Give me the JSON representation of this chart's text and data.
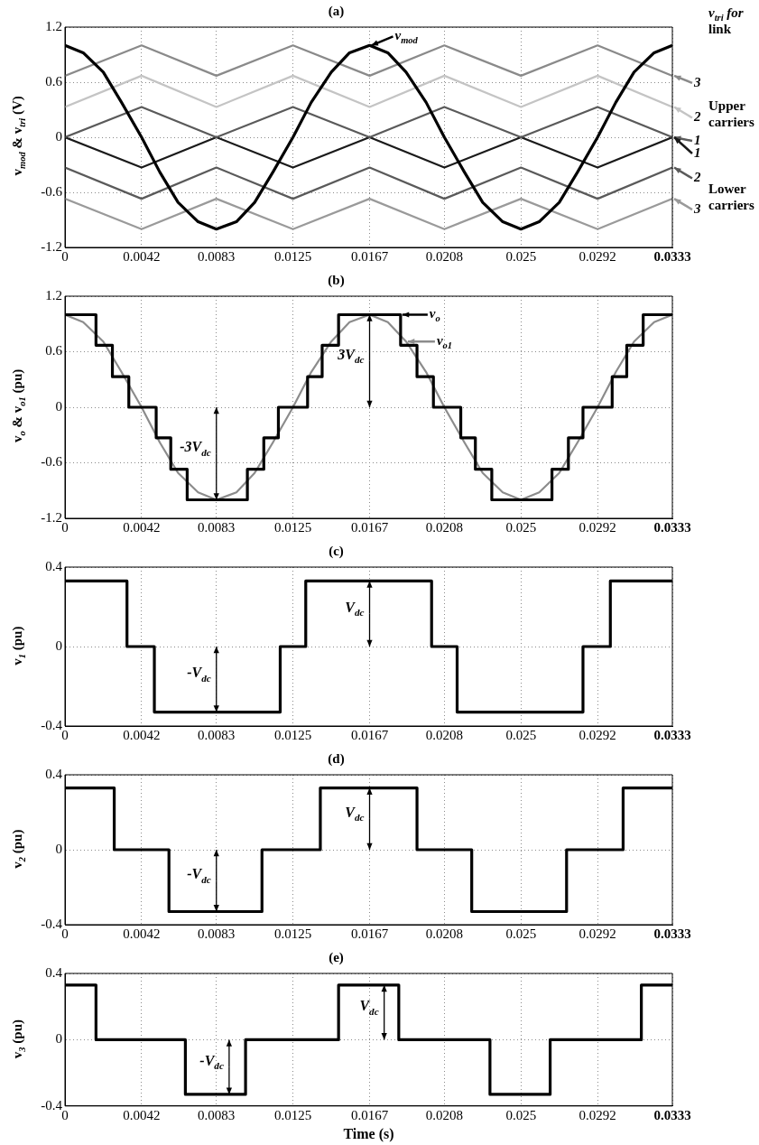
{
  "chart_data": [
    {
      "type": "line",
      "title": "(a)",
      "ylabel": "v$_{mod}$ & v$_{tri}$ (V)",
      "xlim": [
        0,
        0.0333
      ],
      "xticks": [
        0,
        0.0042,
        0.0083,
        0.0125,
        0.0167,
        0.0208,
        0.025,
        0.0292,
        0.0333
      ],
      "ylim": [
        -1.2,
        1.2
      ],
      "yticks": [
        -1.2,
        -0.6,
        0,
        0.6,
        1.2
      ],
      "grid": true,
      "annotations": [
        "v$_{tri}$ for link",
        "Upper carriers",
        "Lower carriers"
      ],
      "legend": "right",
      "series": [
        {
          "name": "v$_{mod}$",
          "color": "#000000",
          "x": [
            0,
            0.001,
            0.0021,
            0.0031,
            0.0042,
            0.0052,
            0.0062,
            0.0073,
            0.0083,
            0.0094,
            0.0104,
            0.0114,
            0.0125,
            0.0135,
            0.0146,
            0.0156,
            0.0167,
            0.0177,
            0.0187,
            0.0198,
            0.0208,
            0.0219,
            0.0229,
            0.024,
            0.025,
            0.026,
            0.0271,
            0.0281,
            0.0292,
            0.0302,
            0.0312,
            0.0323,
            0.0333
          ],
          "values": [
            1,
            0.92,
            0.71,
            0.38,
            0,
            -0.38,
            -0.71,
            -0.92,
            -1,
            -0.92,
            -0.71,
            -0.38,
            0,
            0.38,
            0.71,
            0.92,
            1,
            0.92,
            0.71,
            0.38,
            0,
            -0.38,
            -0.71,
            -0.92,
            -1,
            -0.92,
            -0.71,
            -0.38,
            0,
            0.38,
            0.71,
            0.92,
            1
          ]
        },
        {
          "name": "3",
          "color": "#8a8a8a",
          "x": [
            0,
            0.0042,
            0.0083,
            0.0125,
            0.0167,
            0.0208,
            0.025,
            0.0292,
            0.0333
          ],
          "values": [
            0.67,
            1,
            0.67,
            1,
            0.67,
            1,
            0.67,
            1,
            0.67
          ]
        },
        {
          "name": "2",
          "color": "#c4c4c4",
          "x": [
            0,
            0.0042,
            0.0083,
            0.0125,
            0.0167,
            0.0208,
            0.025,
            0.0292,
            0.0333
          ],
          "values": [
            0.33,
            0.67,
            0.33,
            0.67,
            0.33,
            0.67,
            0.33,
            0.67,
            0.33
          ]
        },
        {
          "name": "1",
          "color": "#5a5a5a",
          "x": [
            0,
            0.0042,
            0.0083,
            0.0125,
            0.0167,
            0.0208,
            0.025,
            0.0292,
            0.0333
          ],
          "values": [
            0,
            0.33,
            0,
            0.33,
            0,
            0.33,
            0,
            0.33,
            0
          ]
        },
        {
          "name": "1",
          "color": "#1a1a1a",
          "x": [
            0,
            0.0042,
            0.0083,
            0.0125,
            0.0167,
            0.0208,
            0.025,
            0.0292,
            0.0333
          ],
          "values": [
            0,
            -0.33,
            0,
            -0.33,
            0,
            -0.33,
            0,
            -0.33,
            0
          ]
        },
        {
          "name": "2",
          "color": "#5a5a5a",
          "x": [
            0,
            0.0042,
            0.0083,
            0.0125,
            0.0167,
            0.0208,
            0.025,
            0.0292,
            0.0333
          ],
          "values": [
            -0.33,
            -0.67,
            -0.33,
            -0.67,
            -0.33,
            -0.67,
            -0.33,
            -0.67,
            -0.33
          ]
        },
        {
          "name": "3",
          "color": "#9a9a9a",
          "x": [
            0,
            0.0042,
            0.0083,
            0.0125,
            0.0167,
            0.0208,
            0.025,
            0.0292,
            0.0333
          ],
          "values": [
            -0.67,
            -1,
            -0.67,
            -1,
            -0.67,
            -1,
            -0.67,
            -1,
            -0.67
          ]
        }
      ]
    },
    {
      "type": "line",
      "title": "(b)",
      "ylabel": "v$_{o}$ & v$_{o1}$ (pu)",
      "xlim": [
        0,
        0.0333
      ],
      "xticks": [
        0,
        0.0042,
        0.0083,
        0.0125,
        0.0167,
        0.0208,
        0.025,
        0.0292,
        0.0333
      ],
      "ylim": [
        -1.2,
        1.2
      ],
      "yticks": [
        -1.2,
        -0.6,
        0,
        0.6,
        1.2
      ],
      "grid": true,
      "annotations": [
        {
          "text": "3V$_{dc}$",
          "x": 0.0167,
          "y": 1
        },
        {
          "text": "-3V$_{dc}$",
          "x": 0.0083,
          "y": -1
        }
      ],
      "legend": "top right",
      "series": [
        {
          "name": "v$_{o}$",
          "type": "step",
          "color": "#000000",
          "x": [
            0,
            0.0017,
            0.0026,
            0.0035,
            0.005,
            0.0058,
            0.0067,
            0.01,
            0.0109,
            0.0117,
            0.0133,
            0.0141,
            0.015,
            0.0184,
            0.0193,
            0.0202,
            0.0217,
            0.0225,
            0.0234,
            0.0267,
            0.0276,
            0.0284,
            0.03,
            0.0308,
            0.0317,
            0.0333
          ],
          "values": [
            1,
            0.67,
            0.33,
            0,
            -0.33,
            -0.67,
            -1,
            -0.67,
            -0.33,
            0,
            0.33,
            0.67,
            1,
            0.67,
            0.33,
            0,
            -0.33,
            -0.67,
            -1,
            -0.67,
            -0.33,
            0,
            0.33,
            0.67,
            1,
            1
          ]
        },
        {
          "name": "v$_{o1}$",
          "color": "#8c8c8c",
          "x": [
            0,
            0.001,
            0.0021,
            0.0031,
            0.0042,
            0.0052,
            0.0062,
            0.0073,
            0.0083,
            0.0094,
            0.0104,
            0.0114,
            0.0125,
            0.0135,
            0.0146,
            0.0156,
            0.0167,
            0.0177,
            0.0187,
            0.0198,
            0.0208,
            0.0219,
            0.0229,
            0.024,
            0.025,
            0.026,
            0.0271,
            0.0281,
            0.0292,
            0.0302,
            0.0312,
            0.0323,
            0.0333
          ],
          "values": [
            1,
            0.92,
            0.71,
            0.38,
            0,
            -0.38,
            -0.71,
            -0.92,
            -1,
            -0.92,
            -0.71,
            -0.38,
            0,
            0.38,
            0.71,
            0.92,
            1,
            0.92,
            0.71,
            0.38,
            0,
            -0.38,
            -0.71,
            -0.92,
            -1,
            -0.92,
            -0.71,
            -0.38,
            0,
            0.38,
            0.71,
            0.92,
            1
          ]
        }
      ]
    },
    {
      "type": "step",
      "title": "(c)",
      "ylabel": "v$_{1}$ (pu)",
      "xlim": [
        0,
        0.0333
      ],
      "xticks": [
        0,
        0.0042,
        0.0083,
        0.0125,
        0.0167,
        0.0208,
        0.025,
        0.0292,
        0.0333
      ],
      "ylim": [
        -0.4,
        0.4
      ],
      "yticks": [
        -0.4,
        0,
        0.4
      ],
      "grid": true,
      "annotations": [
        {
          "text": "V$_{dc}$",
          "x": 0.0167,
          "y": 0.33
        },
        {
          "text": "-V$_{dc}$",
          "x": 0.0083,
          "y": -0.33
        }
      ],
      "series": [
        {
          "color": "#000000",
          "x": [
            0,
            0.0034,
            0.0049,
            0.0118,
            0.0132,
            0.0201,
            0.0215,
            0.0284,
            0.0299,
            0.0333
          ],
          "values": [
            0.33,
            0,
            -0.33,
            0,
            0.33,
            0,
            -0.33,
            0,
            0.33,
            0.33
          ]
        }
      ]
    },
    {
      "type": "step",
      "title": "(d)",
      "ylabel": "v$_{2}$ (pu)",
      "xlim": [
        0,
        0.0333
      ],
      "xticks": [
        0,
        0.0042,
        0.0083,
        0.0125,
        0.0167,
        0.0208,
        0.025,
        0.0292,
        0.0333
      ],
      "ylim": [
        -0.4,
        0.4
      ],
      "yticks": [
        -0.4,
        0,
        0.4
      ],
      "grid": true,
      "annotations": [
        {
          "text": "V$_{dc}$",
          "x": 0.0167,
          "y": 0.33
        },
        {
          "text": "-V$_{dc}$",
          "x": 0.0083,
          "y": -0.33
        }
      ],
      "series": [
        {
          "color": "#000000",
          "x": [
            0,
            0.0027,
            0.0057,
            0.0108,
            0.014,
            0.0193,
            0.0223,
            0.0275,
            0.0306,
            0.0333
          ],
          "values": [
            0.33,
            0,
            -0.33,
            0,
            0.33,
            0,
            -0.33,
            0,
            0.33,
            0.33
          ]
        }
      ]
    },
    {
      "type": "step",
      "title": "(e)",
      "xlabel": "Time (s)",
      "ylabel": "v$_{3}$ (pu)",
      "xlim": [
        0,
        0.0333
      ],
      "xticks": [
        0,
        0.0042,
        0.0083,
        0.0125,
        0.0167,
        0.0208,
        0.025,
        0.0292,
        0.0333
      ],
      "ylim": [
        -0.4,
        0.4
      ],
      "yticks": [
        -0.4,
        0,
        0.4
      ],
      "grid": true,
      "annotations": [
        {
          "text": "V$_{dc}$",
          "x": 0.0175,
          "y": 0.33
        },
        {
          "text": "-V$_{dc}$",
          "x": 0.009,
          "y": -0.33
        }
      ],
      "series": [
        {
          "color": "#000000",
          "x": [
            0,
            0.0017,
            0.0066,
            0.0099,
            0.015,
            0.0183,
            0.0233,
            0.0266,
            0.0316,
            0.0333
          ],
          "values": [
            0.33,
            0,
            -0.33,
            0,
            0.33,
            0,
            -0.33,
            0,
            0.33,
            0.33
          ]
        }
      ]
    }
  ]
}
